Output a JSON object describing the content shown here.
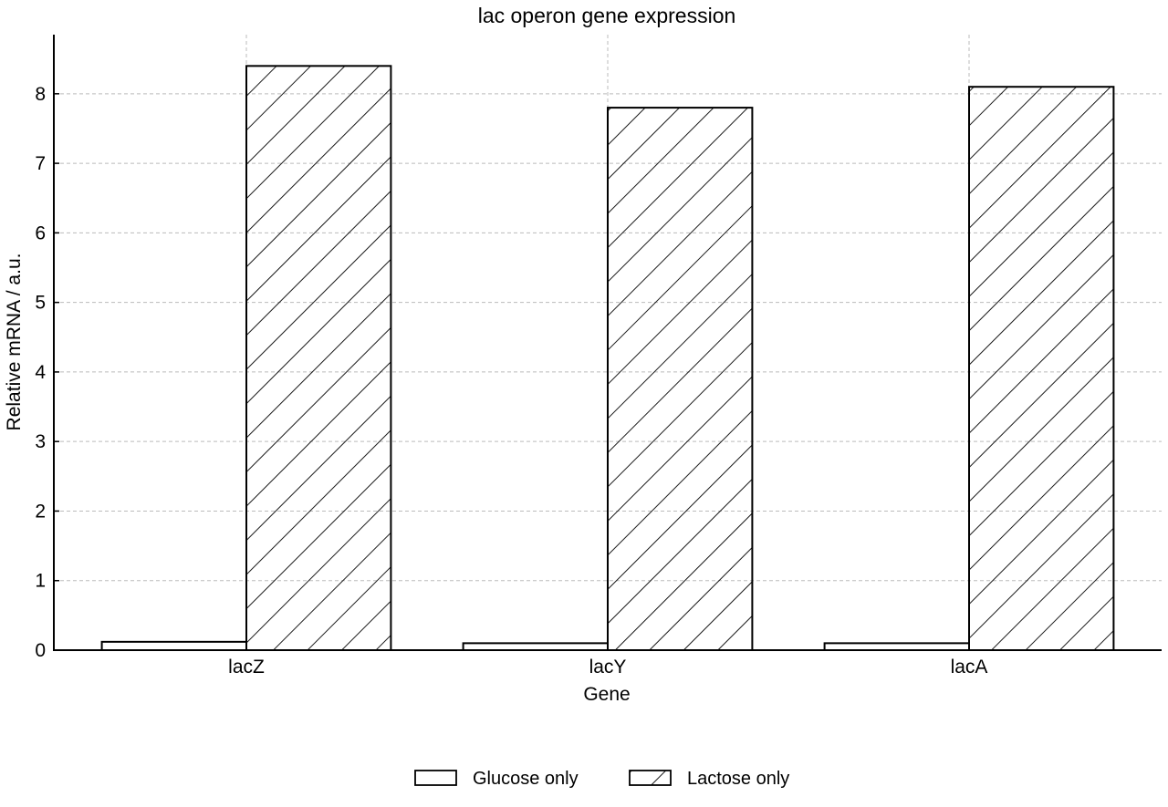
{
  "chart_data": {
    "type": "bar",
    "title": "lac operon gene expression",
    "xlabel": "Gene",
    "ylabel": "Relative mRNA / a.u.",
    "categories": [
      "lacZ",
      "lacY",
      "lacA"
    ],
    "series": [
      {
        "name": "Glucose only",
        "values": [
          0.12,
          0.1,
          0.1
        ],
        "fill": "#ffffff",
        "pattern": "none"
      },
      {
        "name": "Lactose only",
        "values": [
          8.4,
          7.8,
          8.1
        ],
        "fill": "#ffffff",
        "pattern": "diagonal-hatch"
      }
    ],
    "ylim": [
      0,
      8.85
    ],
    "yticks": [
      0,
      1,
      2,
      3,
      4,
      5,
      6,
      7,
      8
    ],
    "grid": true,
    "legend": "bottom-center",
    "colors": {
      "edge": "#000000",
      "grid": "#bbbbbb",
      "background": "#ffffff"
    }
  }
}
